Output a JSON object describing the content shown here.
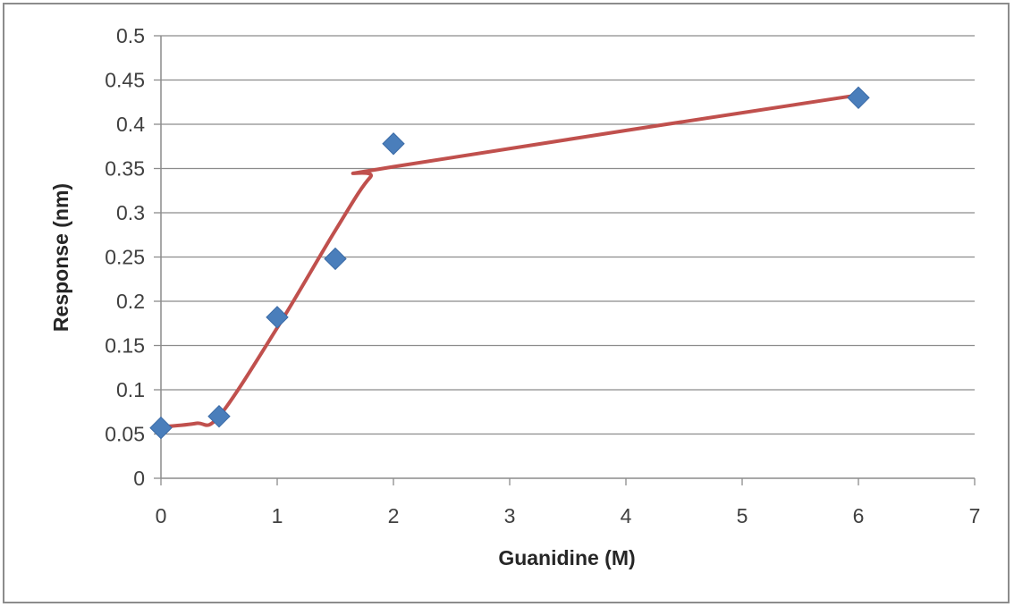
{
  "chart_data": {
    "type": "scatter",
    "title": "",
    "xlabel": "Guanidine (M)",
    "ylabel": "Response (nm)",
    "xlim": [
      0,
      7
    ],
    "ylim": [
      0,
      0.5
    ],
    "x_ticks": [
      "0",
      "1",
      "2",
      "3",
      "4",
      "5",
      "6",
      "7"
    ],
    "y_ticks": [
      "0",
      "0.05",
      "0.1",
      "0.15",
      "0.2",
      "0.25",
      "0.3",
      "0.35",
      "0.4",
      "0.45",
      "0.5"
    ],
    "grid": "horizontal",
    "legend": "none",
    "series": [
      {
        "marker": "diamond",
        "color": "#4a7ebb",
        "x": [
          0,
          0.5,
          1,
          1.5,
          2,
          6
        ],
        "y": [
          0.057,
          0.07,
          0.182,
          0.248,
          0.378,
          0.43
        ]
      }
    ],
    "trendline": {
      "type": "smoothed",
      "color": "#c0504d",
      "x": [
        0,
        0.3,
        0.5,
        1,
        1.5,
        1.8,
        2,
        6
      ],
      "y": [
        0.058,
        0.062,
        0.07,
        0.17,
        0.28,
        0.34,
        0.352,
        0.433
      ]
    }
  }
}
